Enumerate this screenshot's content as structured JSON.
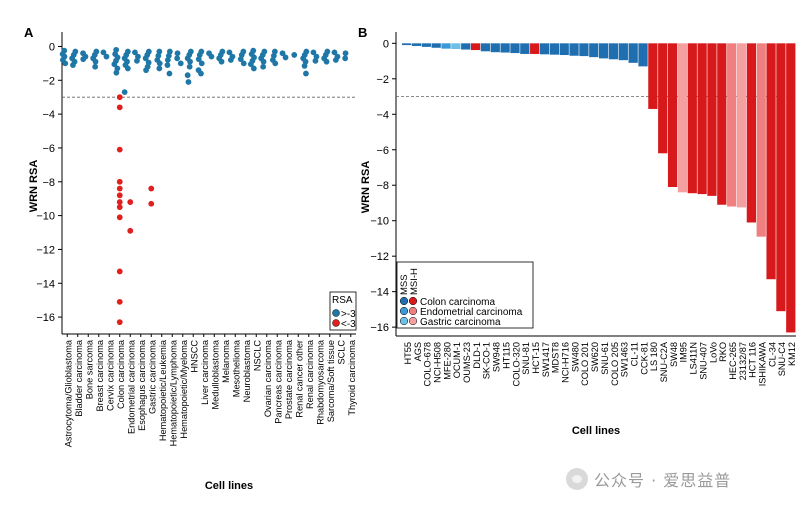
{
  "colors": {
    "rsa_above": "#1f77a8",
    "rsa_below": "#e0201f",
    "mss": "#1f6fb0",
    "msi_h": "#d7191c",
    "endometrial_mss": "#3a99d8",
    "endometrial_msi": "#f08080",
    "gastric_mss": "#6cc0e8",
    "gastric_msi": "#f5a0a0",
    "threshold_line": "#666666"
  },
  "watermark": "公众号 · 爱思益普",
  "chart_data": [
    {
      "panel": "A",
      "type": "scatter",
      "xlabel": "Cell lines",
      "ylabel": "WRN RSA",
      "ylim": [
        -17,
        0.5
      ],
      "yticks": [
        0,
        -2,
        -4,
        -6,
        -8,
        -10,
        -12,
        -14,
        -16
      ],
      "threshold": -3,
      "categories": [
        "Astrocytoma/Glioblastoma",
        "Bladder carcinoma",
        "Bone sarcoma",
        "Breast carcinoma",
        "Cervix carcinoma",
        "Colon carcinoma",
        "Endometrial carcinoma",
        "Esophagus carcinoma",
        "Gastric carcinoma",
        "Hematopoietic/Leukemia",
        "Hematopoietic/Lymphoma",
        "Hematopoietic/Myeloma",
        "HNSCC",
        "Liver carcinoma",
        "Medulloblastoma",
        "Melanoma",
        "Mesothelioma",
        "Neuroblastoma",
        "NSCLC",
        "Ovarian carcinoma",
        "Pancreas carcinoma",
        "Prostate carcinoma",
        "Renal cancer other",
        "Renal carcinoma",
        "Rhabdomyosarcoma",
        "Sarcoma/Soft tissue",
        "SCLC",
        "Thyroid carcinoma"
      ],
      "legend": {
        "title": "RSA",
        "entries": [
          ">-3",
          "<-3"
        ]
      },
      "points_above": [
        [
          0,
          -0.25
        ],
        [
          0,
          -0.45
        ],
        [
          0,
          -0.6
        ],
        [
          0,
          -0.8
        ],
        [
          0,
          -1.0
        ],
        [
          1,
          -0.3
        ],
        [
          1,
          -0.5
        ],
        [
          1,
          -0.7
        ],
        [
          1,
          -0.9
        ],
        [
          1,
          -1.1
        ],
        [
          2,
          -0.4
        ],
        [
          2,
          -0.6
        ],
        [
          2,
          -0.75
        ],
        [
          3,
          -0.3
        ],
        [
          3,
          -0.5
        ],
        [
          3,
          -0.7
        ],
        [
          3,
          -0.9
        ],
        [
          3,
          -1.2
        ],
        [
          4,
          -0.35
        ],
        [
          4,
          -0.6
        ],
        [
          5,
          -0.2
        ],
        [
          5,
          -0.45
        ],
        [
          5,
          -0.65
        ],
        [
          5,
          -0.85
        ],
        [
          5,
          -1.05
        ],
        [
          5,
          -1.3
        ],
        [
          5,
          -1.55
        ],
        [
          6,
          -0.3
        ],
        [
          6,
          -0.5
        ],
        [
          6,
          -0.7
        ],
        [
          6,
          -0.9
        ],
        [
          6,
          -1.1
        ],
        [
          6,
          -1.3
        ],
        [
          6,
          -2.7
        ],
        [
          7,
          -0.35
        ],
        [
          7,
          -0.6
        ],
        [
          7,
          -0.85
        ],
        [
          8,
          -0.3
        ],
        [
          8,
          -0.5
        ],
        [
          8,
          -0.7
        ],
        [
          8,
          -0.95
        ],
        [
          8,
          -1.2
        ],
        [
          8,
          -1.4
        ],
        [
          9,
          -0.3
        ],
        [
          9,
          -0.55
        ],
        [
          9,
          -0.8
        ],
        [
          9,
          -1.0
        ],
        [
          9,
          -1.3
        ],
        [
          10,
          -0.3
        ],
        [
          10,
          -0.55
        ],
        [
          10,
          -0.8
        ],
        [
          10,
          -1.1
        ],
        [
          10,
          -1.6
        ],
        [
          11,
          -0.4
        ],
        [
          11,
          -0.7
        ],
        [
          11,
          -1.0
        ],
        [
          12,
          -0.3
        ],
        [
          12,
          -0.5
        ],
        [
          12,
          -0.7
        ],
        [
          12,
          -0.9
        ],
        [
          12,
          -1.2
        ],
        [
          12,
          -1.7
        ],
        [
          12,
          -2.1
        ],
        [
          13,
          -0.3
        ],
        [
          13,
          -0.5
        ],
        [
          13,
          -0.75
        ],
        [
          13,
          -1.0
        ],
        [
          13,
          -1.4
        ],
        [
          13,
          -1.6
        ],
        [
          14,
          -0.4
        ],
        [
          14,
          -0.6
        ],
        [
          15,
          -0.3
        ],
        [
          15,
          -0.5
        ],
        [
          15,
          -0.7
        ],
        [
          15,
          -0.9
        ],
        [
          16,
          -0.35
        ],
        [
          16,
          -0.6
        ],
        [
          16,
          -0.8
        ],
        [
          17,
          -0.3
        ],
        [
          17,
          -0.5
        ],
        [
          17,
          -0.75
        ],
        [
          17,
          -1.0
        ],
        [
          18,
          -0.25
        ],
        [
          18,
          -0.45
        ],
        [
          18,
          -0.65
        ],
        [
          18,
          -0.85
        ],
        [
          18,
          -1.05
        ],
        [
          18,
          -1.3
        ],
        [
          19,
          -0.3
        ],
        [
          19,
          -0.5
        ],
        [
          19,
          -0.7
        ],
        [
          19,
          -0.9
        ],
        [
          19,
          -1.2
        ],
        [
          20,
          -0.3
        ],
        [
          20,
          -0.55
        ],
        [
          20,
          -0.8
        ],
        [
          20,
          -1.0
        ],
        [
          21,
          -0.4
        ],
        [
          21,
          -0.65
        ],
        [
          22,
          -0.5
        ],
        [
          23,
          -0.3
        ],
        [
          23,
          -0.5
        ],
        [
          23,
          -0.7
        ],
        [
          23,
          -0.9
        ],
        [
          23,
          -1.15
        ],
        [
          23,
          -1.6
        ],
        [
          24,
          -0.35
        ],
        [
          24,
          -0.6
        ],
        [
          24,
          -0.85
        ],
        [
          25,
          -0.3
        ],
        [
          25,
          -0.5
        ],
        [
          25,
          -0.7
        ],
        [
          25,
          -0.9
        ],
        [
          26,
          -0.35
        ],
        [
          26,
          -0.6
        ],
        [
          26,
          -0.8
        ],
        [
          27,
          -0.4
        ],
        [
          27,
          -0.7
        ]
      ],
      "points_below": [
        [
          5,
          -3.0
        ],
        [
          5,
          -3.6
        ],
        [
          5,
          -6.1
        ],
        [
          5,
          -8.0
        ],
        [
          5,
          -8.4
        ],
        [
          5,
          -8.8
        ],
        [
          5,
          -9.2
        ],
        [
          5,
          -9.5
        ],
        [
          5,
          -10.1
        ],
        [
          5,
          -13.3
        ],
        [
          5,
          -15.1
        ],
        [
          5,
          -16.3
        ],
        [
          6,
          -9.2
        ],
        [
          6,
          -10.9
        ],
        [
          8,
          -8.4
        ],
        [
          8,
          -9.3
        ]
      ]
    },
    {
      "panel": "B",
      "type": "bar",
      "xlabel": "Cell lines",
      "ylabel": "WRN RSA",
      "ylim": [
        -16.5,
        0.3
      ],
      "yticks": [
        0,
        -2,
        -4,
        -6,
        -8,
        -10,
        -12,
        -14,
        -16
      ],
      "threshold": -3,
      "categories": [
        "HT55",
        "AGS",
        "COLO-678",
        "NCI-H508",
        "MFE-280",
        "OCUM-1",
        "OUMS-23",
        "DLD-1",
        "SK-CO-1",
        "SW948",
        "HT115",
        "COLO-320",
        "SNU-81",
        "HCT-15",
        "SW1417",
        "MDST8",
        "NCI-H716",
        "SW480",
        "COLO 201",
        "SW620",
        "SNU-61",
        "COLO 205",
        "SW1463",
        "CL-11",
        "CCK-81",
        "LS 180",
        "SNU-C2A",
        "SW48",
        "IM95",
        "LS411N",
        "SNU-407",
        "LoVo",
        "RKO",
        "HEC-265",
        "23132/87",
        "HCT 116",
        "ISHIKAWA",
        "CL-34",
        "SNU-C4",
        "KM12"
      ],
      "values": [
        -0.1,
        -0.15,
        -0.2,
        -0.25,
        -0.3,
        -0.32,
        -0.35,
        -0.38,
        -0.45,
        -0.5,
        -0.52,
        -0.55,
        -0.6,
        -0.6,
        -0.62,
        -0.64,
        -0.66,
        -0.7,
        -0.72,
        -0.78,
        -0.85,
        -0.9,
        -0.95,
        -1.1,
        -1.3,
        -3.7,
        -6.2,
        -8.1,
        -8.4,
        -8.45,
        -8.5,
        -8.6,
        -9.1,
        -9.2,
        -9.25,
        -10.1,
        -10.9,
        -13.3,
        -15.1,
        -16.3
      ],
      "groups": [
        "mss",
        "mss",
        "mss",
        "mss",
        "endometrial_mss",
        "gastric_mss",
        "mss",
        "msi_h",
        "mss",
        "mss",
        "mss",
        "mss",
        "mss",
        "msi_h",
        "mss",
        "mss",
        "mss",
        "mss",
        "mss",
        "mss",
        "mss",
        "mss",
        "mss",
        "mss",
        "mss",
        "msi_h",
        "msi_h",
        "msi_h",
        "gastric_msi",
        "msi_h",
        "msi_h",
        "msi_h",
        "msi_h",
        "endometrial_msi",
        "gastric_msi",
        "msi_h",
        "endometrial_msi",
        "msi_h",
        "msi_h",
        "msi_h"
      ],
      "legend": {
        "columns": [
          "MSS",
          "MSI-H"
        ],
        "entries": [
          "Colon carcinoma",
          "Endometrial carcinoma",
          "Gastric carcinoma"
        ]
      }
    }
  ]
}
